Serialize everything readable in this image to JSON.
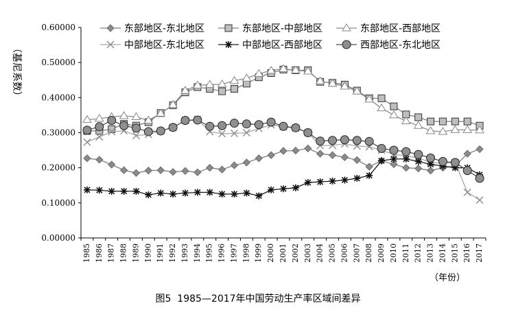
{
  "chart_data": {
    "type": "line",
    "title": "",
    "ylabel": "（基尼系数）",
    "xlabel": "（年份）",
    "ylim": [
      0,
      0.6
    ],
    "yticks": [
      "0.00000",
      "0.10000",
      "0.20000",
      "0.30000",
      "0.40000",
      "0.50000",
      "0.60000"
    ],
    "grid": false,
    "legend_position": "top",
    "categories": [
      "1985",
      "1986",
      "1987",
      "1988",
      "1989",
      "1990",
      "1991",
      "1992",
      "1993",
      "1994",
      "1995",
      "1996",
      "1997",
      "1998",
      "1999",
      "2000",
      "2001",
      "2002",
      "2003",
      "2004",
      "2005",
      "2006",
      "2007",
      "2008",
      "2009",
      "2010",
      "2011",
      "2012",
      "2013",
      "2014",
      "2015",
      "2016",
      "2017"
    ],
    "series": [
      {
        "name": "东部地区-东北地区",
        "marker": "diamond",
        "color": "#7f7f7f",
        "values": [
          0.227,
          0.223,
          0.209,
          0.193,
          0.185,
          0.192,
          0.193,
          0.188,
          0.191,
          0.187,
          0.2,
          0.195,
          0.207,
          0.215,
          0.227,
          0.236,
          0.248,
          0.249,
          0.255,
          0.24,
          0.236,
          0.23,
          0.222,
          0.203,
          0.22,
          0.21,
          0.2,
          0.198,
          0.192,
          0.2,
          0.205,
          0.24,
          0.253
        ]
      },
      {
        "name": "东部地区-中部地区",
        "marker": "square",
        "color": "#7f7f7f",
        "values": [
          0.305,
          0.305,
          0.31,
          0.325,
          0.32,
          0.33,
          0.356,
          0.378,
          0.415,
          0.43,
          0.425,
          0.418,
          0.425,
          0.44,
          0.458,
          0.47,
          0.48,
          0.478,
          0.478,
          0.445,
          0.442,
          0.437,
          0.42,
          0.398,
          0.398,
          0.375,
          0.352,
          0.344,
          0.332,
          0.332,
          0.332,
          0.332,
          0.32
        ]
      },
      {
        "name": "东部地区-西部地区",
        "marker": "triangle",
        "color": "#8c8c8c",
        "values": [
          0.337,
          0.34,
          0.345,
          0.348,
          0.345,
          0.335,
          0.355,
          0.38,
          0.42,
          0.435,
          0.437,
          0.438,
          0.448,
          0.455,
          0.468,
          0.477,
          0.482,
          0.478,
          0.475,
          0.447,
          0.44,
          0.432,
          0.418,
          0.395,
          0.37,
          0.35,
          0.333,
          0.32,
          0.305,
          0.303,
          0.308,
          0.308,
          0.307
        ]
      },
      {
        "name": "中部地区-东北地区",
        "marker": "x",
        "color": "#a6a6a6",
        "values": [
          0.273,
          0.288,
          0.303,
          0.305,
          0.292,
          0.295,
          0.305,
          0.315,
          0.335,
          0.338,
          0.303,
          0.297,
          0.298,
          0.3,
          0.312,
          0.322,
          0.317,
          0.313,
          0.3,
          0.263,
          0.264,
          0.268,
          0.262,
          0.26,
          0.25,
          0.238,
          0.234,
          0.228,
          0.215,
          0.213,
          0.215,
          0.13,
          0.108
        ]
      },
      {
        "name": "中部地区-西部地区",
        "marker": "star",
        "color": "#1a1a1a",
        "values": [
          0.137,
          0.136,
          0.133,
          0.133,
          0.133,
          0.123,
          0.128,
          0.125,
          0.128,
          0.13,
          0.13,
          0.125,
          0.125,
          0.128,
          0.12,
          0.137,
          0.14,
          0.143,
          0.158,
          0.16,
          0.162,
          0.165,
          0.17,
          0.178,
          0.22,
          0.225,
          0.225,
          0.218,
          0.21,
          0.205,
          0.2,
          0.2,
          0.18
        ]
      },
      {
        "name": "西部地区-东北地区",
        "marker": "circle",
        "color": "#4d4d4d",
        "values": [
          0.307,
          0.317,
          0.335,
          0.32,
          0.313,
          0.303,
          0.305,
          0.315,
          0.335,
          0.336,
          0.318,
          0.32,
          0.327,
          0.325,
          0.323,
          0.33,
          0.318,
          0.314,
          0.3,
          0.276,
          0.278,
          0.28,
          0.278,
          0.275,
          0.255,
          0.25,
          0.246,
          0.238,
          0.228,
          0.218,
          0.215,
          0.192,
          0.17
        ]
      }
    ]
  },
  "caption": {
    "figure_number": "图5",
    "text": "1985—2017年中国劳动生产率区域间差异"
  }
}
